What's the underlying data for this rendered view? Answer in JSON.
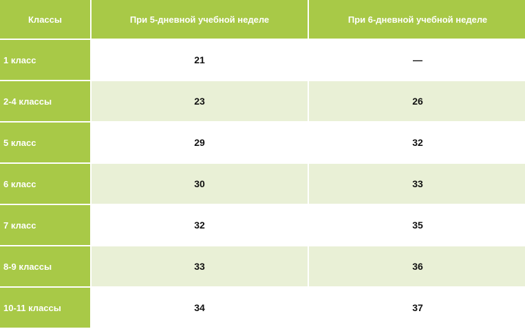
{
  "table": {
    "headers": [
      "Классы",
      "При 5-дневной учебной неделе",
      "При 6-дневной учебной неделе"
    ],
    "rows": [
      {
        "class": "1 класс",
        "five_day": "21",
        "six_day": "—"
      },
      {
        "class": "2-4 классы",
        "five_day": "23",
        "six_day": "26"
      },
      {
        "class": "5 класс",
        "five_day": "29",
        "six_day": "32"
      },
      {
        "class": "6 класс",
        "five_day": "30",
        "six_day": "33"
      },
      {
        "class": "7 класс",
        "five_day": "32",
        "six_day": "35"
      },
      {
        "class": "8-9 классы",
        "five_day": "33",
        "six_day": "36"
      },
      {
        "class": "10-11 классы",
        "five_day": "34",
        "six_day": "37"
      }
    ]
  },
  "colors": {
    "header_green": "#a8c947",
    "row_stripe": "#e9f0d6",
    "text_light": "#ffffff",
    "text_dark": "#111111"
  }
}
